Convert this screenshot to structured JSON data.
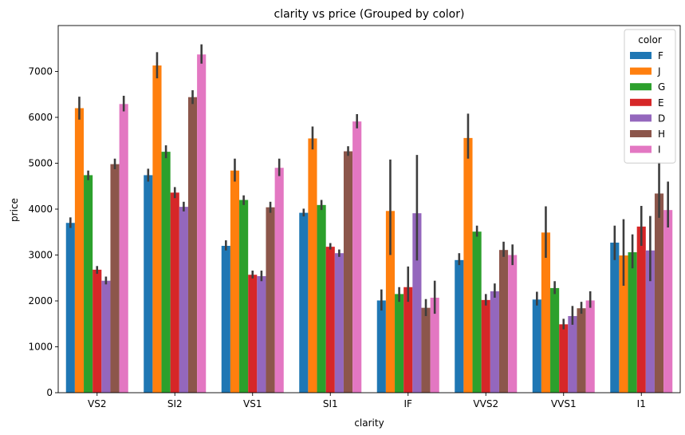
{
  "chart_data": {
    "type": "bar",
    "title": "clarity vs price (Grouped by color)",
    "xlabel": "clarity",
    "ylabel": "price",
    "ylim": [
      0,
      8000
    ],
    "yticks": [
      0,
      1000,
      2000,
      3000,
      4000,
      5000,
      6000,
      7000
    ],
    "categories": [
      "VS2",
      "SI2",
      "VS1",
      "SI1",
      "IF",
      "VVS2",
      "VVS1",
      "I1"
    ],
    "legend": {
      "title": "color",
      "placement": "top-right"
    },
    "series": [
      {
        "name": "F",
        "color": "#1f77b4",
        "values": [
          3700,
          4740,
          3200,
          3920,
          2010,
          2890,
          2030,
          3270
        ],
        "err_low": [
          3590,
          4600,
          3100,
          3840,
          1790,
          2780,
          1900,
          2890
        ],
        "err_high": [
          3820,
          4880,
          3320,
          4010,
          2250,
          3040,
          2200,
          3640
        ]
      },
      {
        "name": "J",
        "color": "#ff7f0e",
        "values": [
          6200,
          7130,
          4840,
          5540,
          3960,
          5550,
          3490,
          2990
        ],
        "err_low": [
          5950,
          6850,
          4600,
          5300,
          3000,
          5100,
          2940,
          2330
        ],
        "err_high": [
          6450,
          7420,
          5100,
          5800,
          5080,
          6080,
          4060,
          3780
        ]
      },
      {
        "name": "G",
        "color": "#2ca02c",
        "values": [
          4740,
          5250,
          4200,
          4090,
          2150,
          3510,
          2280,
          3060
        ],
        "err_low": [
          4630,
          5110,
          4090,
          3980,
          1980,
          3400,
          2150,
          2710
        ],
        "err_high": [
          4840,
          5390,
          4300,
          4200,
          2300,
          3640,
          2430,
          3450
        ]
      },
      {
        "name": "E",
        "color": "#d62728",
        "values": [
          2680,
          4360,
          2570,
          3180,
          2300,
          2020,
          1490,
          3620
        ],
        "err_low": [
          2590,
          4240,
          2490,
          3120,
          1980,
          1900,
          1380,
          3200
        ],
        "err_high": [
          2760,
          4480,
          2660,
          3260,
          2750,
          2150,
          1610,
          4070
        ]
      },
      {
        "name": "D",
        "color": "#9467bd",
        "values": [
          2440,
          4050,
          2540,
          3040,
          3910,
          2210,
          1670,
          3100
        ],
        "err_low": [
          2360,
          3950,
          2430,
          2960,
          2880,
          2070,
          1480,
          2430
        ],
        "err_high": [
          2530,
          4160,
          2660,
          3120,
          5180,
          2380,
          1890,
          3850
        ]
      },
      {
        "name": "H",
        "color": "#8c564b",
        "values": [
          4980,
          6440,
          4040,
          5260,
          1850,
          3110,
          1840,
          4340
        ],
        "err_low": [
          4870,
          6290,
          3920,
          5160,
          1670,
          2960,
          1720,
          3810
        ],
        "err_high": [
          5100,
          6590,
          4160,
          5370,
          2040,
          3290,
          1980,
          5020
        ]
      },
      {
        "name": "I",
        "color": "#e377c2",
        "values": [
          6290,
          7370,
          4900,
          5910,
          2070,
          3000,
          2010,
          3980
        ],
        "err_low": [
          6130,
          7170,
          4720,
          5760,
          1720,
          2780,
          1850,
          3600
        ],
        "err_high": [
          6470,
          7590,
          5100,
          6070,
          2440,
          3230,
          2210,
          4600
        ]
      }
    ]
  }
}
